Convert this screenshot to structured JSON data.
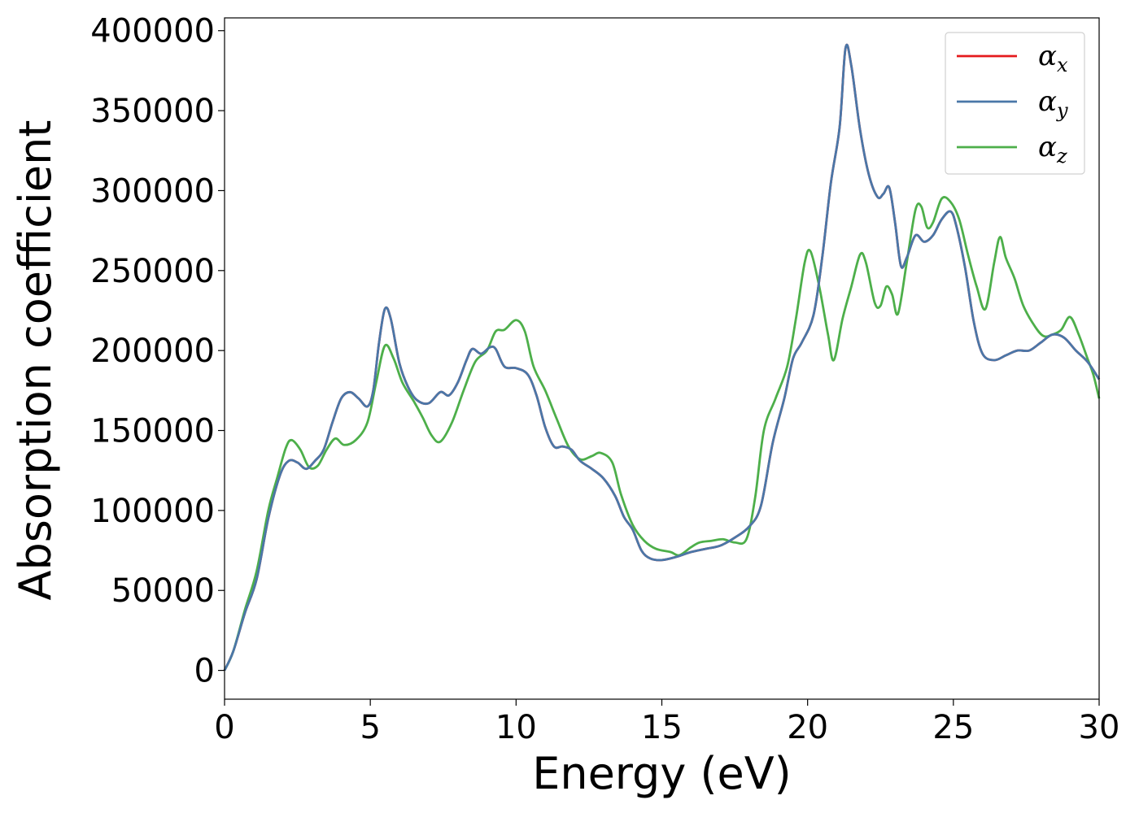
{
  "chart_data": {
    "type": "line",
    "title": "",
    "xlabel": "Energy (eV)",
    "ylabel": "Absorption coefficient",
    "xlim": [
      0,
      30
    ],
    "ylim": [
      -18000,
      408000
    ],
    "xticks": [
      0,
      5,
      10,
      15,
      20,
      25,
      30
    ],
    "yticks": [
      0,
      50000,
      100000,
      150000,
      200000,
      250000,
      300000,
      350000,
      400000
    ],
    "grid": false,
    "legend_position": "top-right",
    "series": [
      {
        "name": "x",
        "color": "#e41a1c",
        "points": [
          [
            0,
            0
          ],
          [
            0.3,
            12000
          ],
          [
            0.7,
            36000
          ],
          [
            1.1,
            57000
          ],
          [
            1.5,
            95000
          ],
          [
            1.9,
            122000
          ],
          [
            2.2,
            131000
          ],
          [
            2.5,
            130000
          ],
          [
            2.8,
            126000
          ],
          [
            3.1,
            131000
          ],
          [
            3.4,
            138000
          ],
          [
            3.7,
            155000
          ],
          [
            4.0,
            170000
          ],
          [
            4.3,
            174000
          ],
          [
            4.6,
            170000
          ],
          [
            4.9,
            165000
          ],
          [
            5.1,
            175000
          ],
          [
            5.3,
            205000
          ],
          [
            5.5,
            226000
          ],
          [
            5.7,
            220000
          ],
          [
            6.0,
            192000
          ],
          [
            6.3,
            177000
          ],
          [
            6.6,
            169000
          ],
          [
            7.0,
            167000
          ],
          [
            7.4,
            174000
          ],
          [
            7.7,
            172000
          ],
          [
            8.0,
            180000
          ],
          [
            8.3,
            194000
          ],
          [
            8.5,
            201000
          ],
          [
            8.8,
            198000
          ],
          [
            9.1,
            202000
          ],
          [
            9.3,
            201000
          ],
          [
            9.6,
            190000
          ],
          [
            10.0,
            189000
          ],
          [
            10.4,
            185000
          ],
          [
            10.7,
            172000
          ],
          [
            11.0,
            152000
          ],
          [
            11.3,
            140000
          ],
          [
            11.6,
            140000
          ],
          [
            11.9,
            138000
          ],
          [
            12.2,
            131000
          ],
          [
            12.6,
            126000
          ],
          [
            13.0,
            120000
          ],
          [
            13.4,
            109000
          ],
          [
            13.7,
            96000
          ],
          [
            14.0,
            88000
          ],
          [
            14.3,
            75000
          ],
          [
            14.6,
            70000
          ],
          [
            15.0,
            69000
          ],
          [
            15.5,
            71000
          ],
          [
            16.0,
            74000
          ],
          [
            16.5,
            76000
          ],
          [
            17.0,
            78000
          ],
          [
            17.5,
            83000
          ],
          [
            18.0,
            90000
          ],
          [
            18.4,
            103000
          ],
          [
            18.8,
            142000
          ],
          [
            19.2,
            170000
          ],
          [
            19.5,
            195000
          ],
          [
            19.8,
            205000
          ],
          [
            20.2,
            222000
          ],
          [
            20.5,
            258000
          ],
          [
            20.8,
            305000
          ],
          [
            21.1,
            340000
          ],
          [
            21.3,
            389000
          ],
          [
            21.5,
            378000
          ],
          [
            21.8,
            338000
          ],
          [
            22.1,
            310000
          ],
          [
            22.4,
            296000
          ],
          [
            22.6,
            298000
          ],
          [
            22.8,
            302000
          ],
          [
            23.0,
            280000
          ],
          [
            23.2,
            253000
          ],
          [
            23.4,
            258000
          ],
          [
            23.7,
            272000
          ],
          [
            24.0,
            268000
          ],
          [
            24.3,
            272000
          ],
          [
            24.6,
            282000
          ],
          [
            24.9,
            287000
          ],
          [
            25.1,
            278000
          ],
          [
            25.4,
            252000
          ],
          [
            25.7,
            218000
          ],
          [
            26.0,
            198000
          ],
          [
            26.4,
            194000
          ],
          [
            26.8,
            197000
          ],
          [
            27.2,
            200000
          ],
          [
            27.6,
            200000
          ],
          [
            28.0,
            205000
          ],
          [
            28.4,
            210000
          ],
          [
            28.8,
            208000
          ],
          [
            29.2,
            200000
          ],
          [
            29.6,
            193000
          ],
          [
            30.0,
            182000
          ]
        ]
      },
      {
        "name": "y",
        "color": "#4a77a8",
        "points": [
          [
            0,
            0
          ],
          [
            0.3,
            12000
          ],
          [
            0.7,
            36000
          ],
          [
            1.1,
            57000
          ],
          [
            1.5,
            95000
          ],
          [
            1.9,
            122000
          ],
          [
            2.2,
            131000
          ],
          [
            2.5,
            130000
          ],
          [
            2.8,
            126000
          ],
          [
            3.1,
            131000
          ],
          [
            3.4,
            138000
          ],
          [
            3.7,
            155000
          ],
          [
            4.0,
            170000
          ],
          [
            4.3,
            174000
          ],
          [
            4.6,
            170000
          ],
          [
            4.9,
            165000
          ],
          [
            5.1,
            175000
          ],
          [
            5.3,
            205000
          ],
          [
            5.5,
            226000
          ],
          [
            5.7,
            220000
          ],
          [
            6.0,
            192000
          ],
          [
            6.3,
            177000
          ],
          [
            6.6,
            169000
          ],
          [
            7.0,
            167000
          ],
          [
            7.4,
            174000
          ],
          [
            7.7,
            172000
          ],
          [
            8.0,
            180000
          ],
          [
            8.3,
            194000
          ],
          [
            8.5,
            201000
          ],
          [
            8.8,
            198000
          ],
          [
            9.1,
            202000
          ],
          [
            9.3,
            201000
          ],
          [
            9.6,
            190000
          ],
          [
            10.0,
            189000
          ],
          [
            10.4,
            185000
          ],
          [
            10.7,
            172000
          ],
          [
            11.0,
            152000
          ],
          [
            11.3,
            140000
          ],
          [
            11.6,
            140000
          ],
          [
            11.9,
            138000
          ],
          [
            12.2,
            131000
          ],
          [
            12.6,
            126000
          ],
          [
            13.0,
            120000
          ],
          [
            13.4,
            109000
          ],
          [
            13.7,
            96000
          ],
          [
            14.0,
            88000
          ],
          [
            14.3,
            75000
          ],
          [
            14.6,
            70000
          ],
          [
            15.0,
            69000
          ],
          [
            15.5,
            71000
          ],
          [
            16.0,
            74000
          ],
          [
            16.5,
            76000
          ],
          [
            17.0,
            78000
          ],
          [
            17.5,
            83000
          ],
          [
            18.0,
            90000
          ],
          [
            18.4,
            103000
          ],
          [
            18.8,
            142000
          ],
          [
            19.2,
            170000
          ],
          [
            19.5,
            195000
          ],
          [
            19.8,
            205000
          ],
          [
            20.2,
            222000
          ],
          [
            20.5,
            258000
          ],
          [
            20.8,
            305000
          ],
          [
            21.1,
            340000
          ],
          [
            21.3,
            389000
          ],
          [
            21.5,
            378000
          ],
          [
            21.8,
            338000
          ],
          [
            22.1,
            310000
          ],
          [
            22.4,
            296000
          ],
          [
            22.6,
            298000
          ],
          [
            22.8,
            302000
          ],
          [
            23.0,
            280000
          ],
          [
            23.2,
            253000
          ],
          [
            23.4,
            258000
          ],
          [
            23.7,
            272000
          ],
          [
            24.0,
            268000
          ],
          [
            24.3,
            272000
          ],
          [
            24.6,
            282000
          ],
          [
            24.9,
            287000
          ],
          [
            25.1,
            278000
          ],
          [
            25.4,
            252000
          ],
          [
            25.7,
            218000
          ],
          [
            26.0,
            198000
          ],
          [
            26.4,
            194000
          ],
          [
            26.8,
            197000
          ],
          [
            27.2,
            200000
          ],
          [
            27.6,
            200000
          ],
          [
            28.0,
            205000
          ],
          [
            28.4,
            210000
          ],
          [
            28.8,
            208000
          ],
          [
            29.2,
            200000
          ],
          [
            29.6,
            193000
          ],
          [
            30.0,
            182000
          ]
        ]
      },
      {
        "name": "z",
        "color": "#4daf4a",
        "points": [
          [
            0,
            0
          ],
          [
            0.3,
            12000
          ],
          [
            0.7,
            38000
          ],
          [
            1.1,
            62000
          ],
          [
            1.5,
            100000
          ],
          [
            1.8,
            120000
          ],
          [
            2.1,
            139000
          ],
          [
            2.3,
            144000
          ],
          [
            2.6,
            138000
          ],
          [
            2.9,
            127000
          ],
          [
            3.2,
            128000
          ],
          [
            3.5,
            138000
          ],
          [
            3.8,
            145000
          ],
          [
            4.1,
            141000
          ],
          [
            4.5,
            144000
          ],
          [
            4.9,
            155000
          ],
          [
            5.2,
            180000
          ],
          [
            5.5,
            203000
          ],
          [
            5.8,
            195000
          ],
          [
            6.1,
            180000
          ],
          [
            6.5,
            168000
          ],
          [
            6.8,
            158000
          ],
          [
            7.1,
            147000
          ],
          [
            7.4,
            143000
          ],
          [
            7.8,
            155000
          ],
          [
            8.2,
            175000
          ],
          [
            8.6,
            193000
          ],
          [
            9.0,
            200000
          ],
          [
            9.3,
            212000
          ],
          [
            9.6,
            213000
          ],
          [
            10.0,
            219000
          ],
          [
            10.3,
            212000
          ],
          [
            10.6,
            190000
          ],
          [
            11.0,
            175000
          ],
          [
            11.4,
            157000
          ],
          [
            11.8,
            140000
          ],
          [
            12.2,
            132000
          ],
          [
            12.6,
            134000
          ],
          [
            12.9,
            136000
          ],
          [
            13.3,
            130000
          ],
          [
            13.6,
            110000
          ],
          [
            14.0,
            91000
          ],
          [
            14.4,
            81000
          ],
          [
            14.8,
            76000
          ],
          [
            15.3,
            74000
          ],
          [
            15.6,
            72000
          ],
          [
            16.0,
            77000
          ],
          [
            16.3,
            80000
          ],
          [
            16.7,
            81000
          ],
          [
            17.1,
            82000
          ],
          [
            17.5,
            80000
          ],
          [
            17.9,
            82000
          ],
          [
            18.2,
            108000
          ],
          [
            18.5,
            150000
          ],
          [
            18.9,
            170000
          ],
          [
            19.3,
            190000
          ],
          [
            19.6,
            220000
          ],
          [
            19.9,
            255000
          ],
          [
            20.1,
            262000
          ],
          [
            20.4,
            240000
          ],
          [
            20.7,
            210000
          ],
          [
            20.9,
            194000
          ],
          [
            21.2,
            220000
          ],
          [
            21.5,
            240000
          ],
          [
            21.8,
            260000
          ],
          [
            22.0,
            255000
          ],
          [
            22.3,
            230000
          ],
          [
            22.5,
            228000
          ],
          [
            22.7,
            240000
          ],
          [
            22.9,
            235000
          ],
          [
            23.1,
            223000
          ],
          [
            23.4,
            255000
          ],
          [
            23.7,
            288000
          ],
          [
            23.9,
            290000
          ],
          [
            24.1,
            277000
          ],
          [
            24.3,
            280000
          ],
          [
            24.6,
            295000
          ],
          [
            24.9,
            293000
          ],
          [
            25.2,
            282000
          ],
          [
            25.5,
            260000
          ],
          [
            25.8,
            240000
          ],
          [
            26.1,
            226000
          ],
          [
            26.4,
            255000
          ],
          [
            26.6,
            271000
          ],
          [
            26.8,
            258000
          ],
          [
            27.1,
            245000
          ],
          [
            27.4,
            228000
          ],
          [
            27.8,
            215000
          ],
          [
            28.1,
            209000
          ],
          [
            28.4,
            210000
          ],
          [
            28.7,
            213000
          ],
          [
            29.0,
            221000
          ],
          [
            29.3,
            210000
          ],
          [
            29.6,
            195000
          ],
          [
            29.8,
            185000
          ],
          [
            30.0,
            170000
          ]
        ]
      }
    ]
  }
}
